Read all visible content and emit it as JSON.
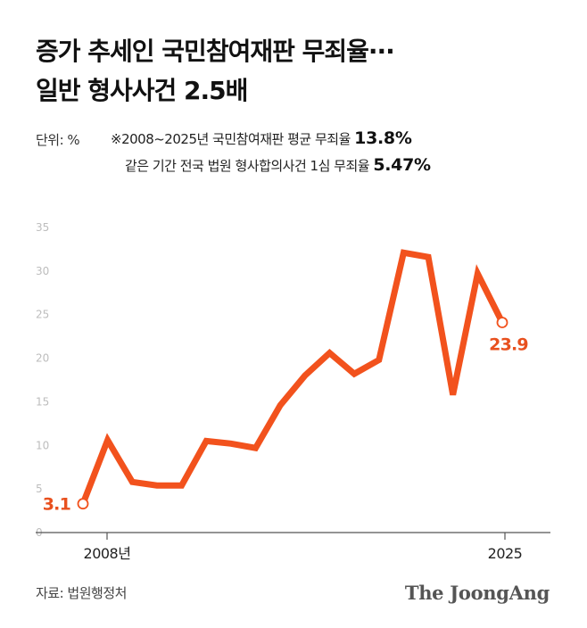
{
  "title": {
    "line1": "증가 추세인 국민참여재판 무죄율···",
    "line2": "일반 형사사건 2.5배"
  },
  "unit_label": "단위: %",
  "notes": {
    "line1_text": "※2008~2025년 국민참여재판 평균 무죄율 ",
    "line1_value": "13.8%",
    "line2_text": "같은 기간 전국 법원 형사합의사건 1심 무죄율 ",
    "line2_value": "5.47%"
  },
  "source": "자료: 법원행정처",
  "logo": "The JoongAng",
  "colors": {
    "line": "#f2521d",
    "label": "#e8501e",
    "axis": "#555555",
    "tick": "#bdbdbd"
  },
  "chart_data": {
    "type": "line",
    "x": [
      2008,
      2009,
      2010,
      2011,
      2012,
      2013,
      2014,
      2015,
      2016,
      2017,
      2018,
      2019,
      2020,
      2021,
      2022,
      2023,
      2024,
      2025
    ],
    "x_tick_labels": [
      "2008년",
      "2025"
    ],
    "series": [
      {
        "values": [
          3.1,
          10.4,
          5.6,
          5.2,
          5.2,
          10.3,
          10.0,
          9.5,
          14.4,
          17.8,
          20.4,
          18.0,
          19.6,
          31.9,
          31.4,
          15.6,
          29.5,
          23.9
        ]
      }
    ],
    "ylim": [
      0,
      35
    ],
    "y_ticks": [
      0,
      5,
      10,
      15,
      20,
      25,
      30,
      35
    ],
    "point_labels": [
      {
        "index": 0,
        "text": "3.1"
      },
      {
        "index": 17,
        "text": "23.9"
      }
    ]
  }
}
